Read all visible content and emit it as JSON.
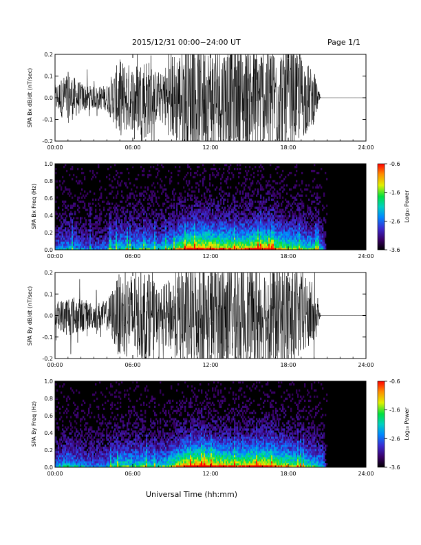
{
  "header": {
    "title": "2015/12/31   00:00−24:00 UT",
    "page": "Page 1/1"
  },
  "x_axis_label": "Universal Time (hh:mm)",
  "chart_data": [
    {
      "id": "bx-wave",
      "type": "line",
      "ylabel": "SPA Bx dB/dt (nT/sec)",
      "xlim": [
        0,
        24
      ],
      "ylim": [
        -0.2,
        0.2
      ],
      "xticks": [
        "00:00",
        "06:00",
        "12:00",
        "18:00",
        "24:00"
      ],
      "yticks": [
        "-0.2",
        "-0.1",
        "0.0",
        "0.1",
        "0.2"
      ],
      "line_color": "#000000",
      "envelope": {
        "hours": [
          0,
          1,
          2,
          3,
          4,
          5,
          6,
          7,
          8,
          9,
          10,
          11,
          12,
          13,
          14,
          15,
          16,
          17,
          18,
          19,
          20,
          20.5,
          21,
          24
        ],
        "amplitude": [
          0.06,
          0.12,
          0.07,
          0.05,
          0.06,
          0.18,
          0.15,
          0.2,
          0.1,
          0.2,
          0.25,
          0.25,
          0.25,
          0.25,
          0.25,
          0.25,
          0.25,
          0.25,
          0.25,
          0.2,
          0.12,
          0.0,
          0.0,
          0.0
        ]
      }
    },
    {
      "id": "bx-spec",
      "type": "heatmap",
      "ylabel": "SPA Bx Freq (Hz)",
      "xlim": [
        0,
        24
      ],
      "ylim": [
        0,
        1
      ],
      "xticks": [
        "00:00",
        "06:00",
        "12:00",
        "18:00",
        "24:00"
      ],
      "yticks": [
        "0.0",
        "0.2",
        "0.4",
        "0.6",
        "0.8",
        "1.0"
      ],
      "colorbar": {
        "label": "Log₁₀ Power",
        "range": [
          -3.6,
          -0.6
        ],
        "ticks": [
          "-0.6",
          "-1.6",
          "-2.6",
          "-3.6"
        ]
      },
      "activity": {
        "hours": [
          0,
          1,
          2,
          3,
          4,
          5,
          6,
          7,
          8,
          9,
          10,
          11,
          12,
          13,
          14,
          15,
          16,
          17,
          18,
          19,
          20,
          20.7,
          21,
          24
        ],
        "level": [
          0.35,
          0.45,
          0.35,
          0.3,
          0.35,
          0.55,
          0.5,
          0.55,
          0.45,
          0.6,
          0.85,
          0.95,
          0.9,
          0.85,
          0.8,
          0.85,
          0.9,
          0.8,
          0.7,
          0.6,
          0.5,
          0.4,
          0.0,
          0.0
        ]
      }
    },
    {
      "id": "by-wave",
      "type": "line",
      "ylabel": "SPA By dB/dt (nT/sec)",
      "xlim": [
        0,
        24
      ],
      "ylim": [
        -0.2,
        0.2
      ],
      "xticks": [
        "00:00",
        "06:00",
        "12:00",
        "18:00",
        "24:00"
      ],
      "yticks": [
        "-0.2",
        "-0.1",
        "0.0",
        "0.1",
        "0.2"
      ],
      "line_color": "#000000",
      "envelope": {
        "hours": [
          0,
          1,
          2,
          3,
          4,
          5,
          6,
          7,
          8,
          9,
          10,
          11,
          12,
          13,
          14,
          15,
          16,
          17,
          18,
          19,
          20,
          20.5,
          21,
          24
        ],
        "amplitude": [
          0.05,
          0.1,
          0.08,
          0.06,
          0.07,
          0.2,
          0.2,
          0.22,
          0.12,
          0.18,
          0.25,
          0.25,
          0.25,
          0.25,
          0.25,
          0.25,
          0.25,
          0.25,
          0.25,
          0.2,
          0.14,
          0.0,
          0.0,
          0.0
        ]
      }
    },
    {
      "id": "by-spec",
      "type": "heatmap",
      "ylabel": "SPA By Freq (Hz)",
      "xlim": [
        0,
        24
      ],
      "ylim": [
        0,
        1
      ],
      "xticks": [
        "00:00",
        "06:00",
        "12:00",
        "18:00",
        "24:00"
      ],
      "yticks": [
        "0.0",
        "0.2",
        "0.4",
        "0.6",
        "0.8",
        "1.0"
      ],
      "colorbar": {
        "label": "Log₁₀ Power",
        "range": [
          -3.6,
          -0.6
        ],
        "ticks": [
          "-0.6",
          "-1.6",
          "-2.6",
          "-3.6"
        ]
      },
      "activity": {
        "hours": [
          0,
          1,
          2,
          3,
          4,
          5,
          6,
          7,
          8,
          9,
          10,
          11,
          12,
          13,
          14,
          15,
          16,
          17,
          18,
          19,
          20,
          20.7,
          21,
          24
        ],
        "level": [
          0.4,
          0.5,
          0.4,
          0.35,
          0.4,
          0.6,
          0.55,
          0.6,
          0.5,
          0.65,
          0.9,
          1.0,
          0.95,
          0.9,
          0.85,
          0.9,
          0.95,
          0.85,
          0.75,
          0.65,
          0.55,
          0.45,
          0.0,
          0.0
        ]
      }
    }
  ]
}
